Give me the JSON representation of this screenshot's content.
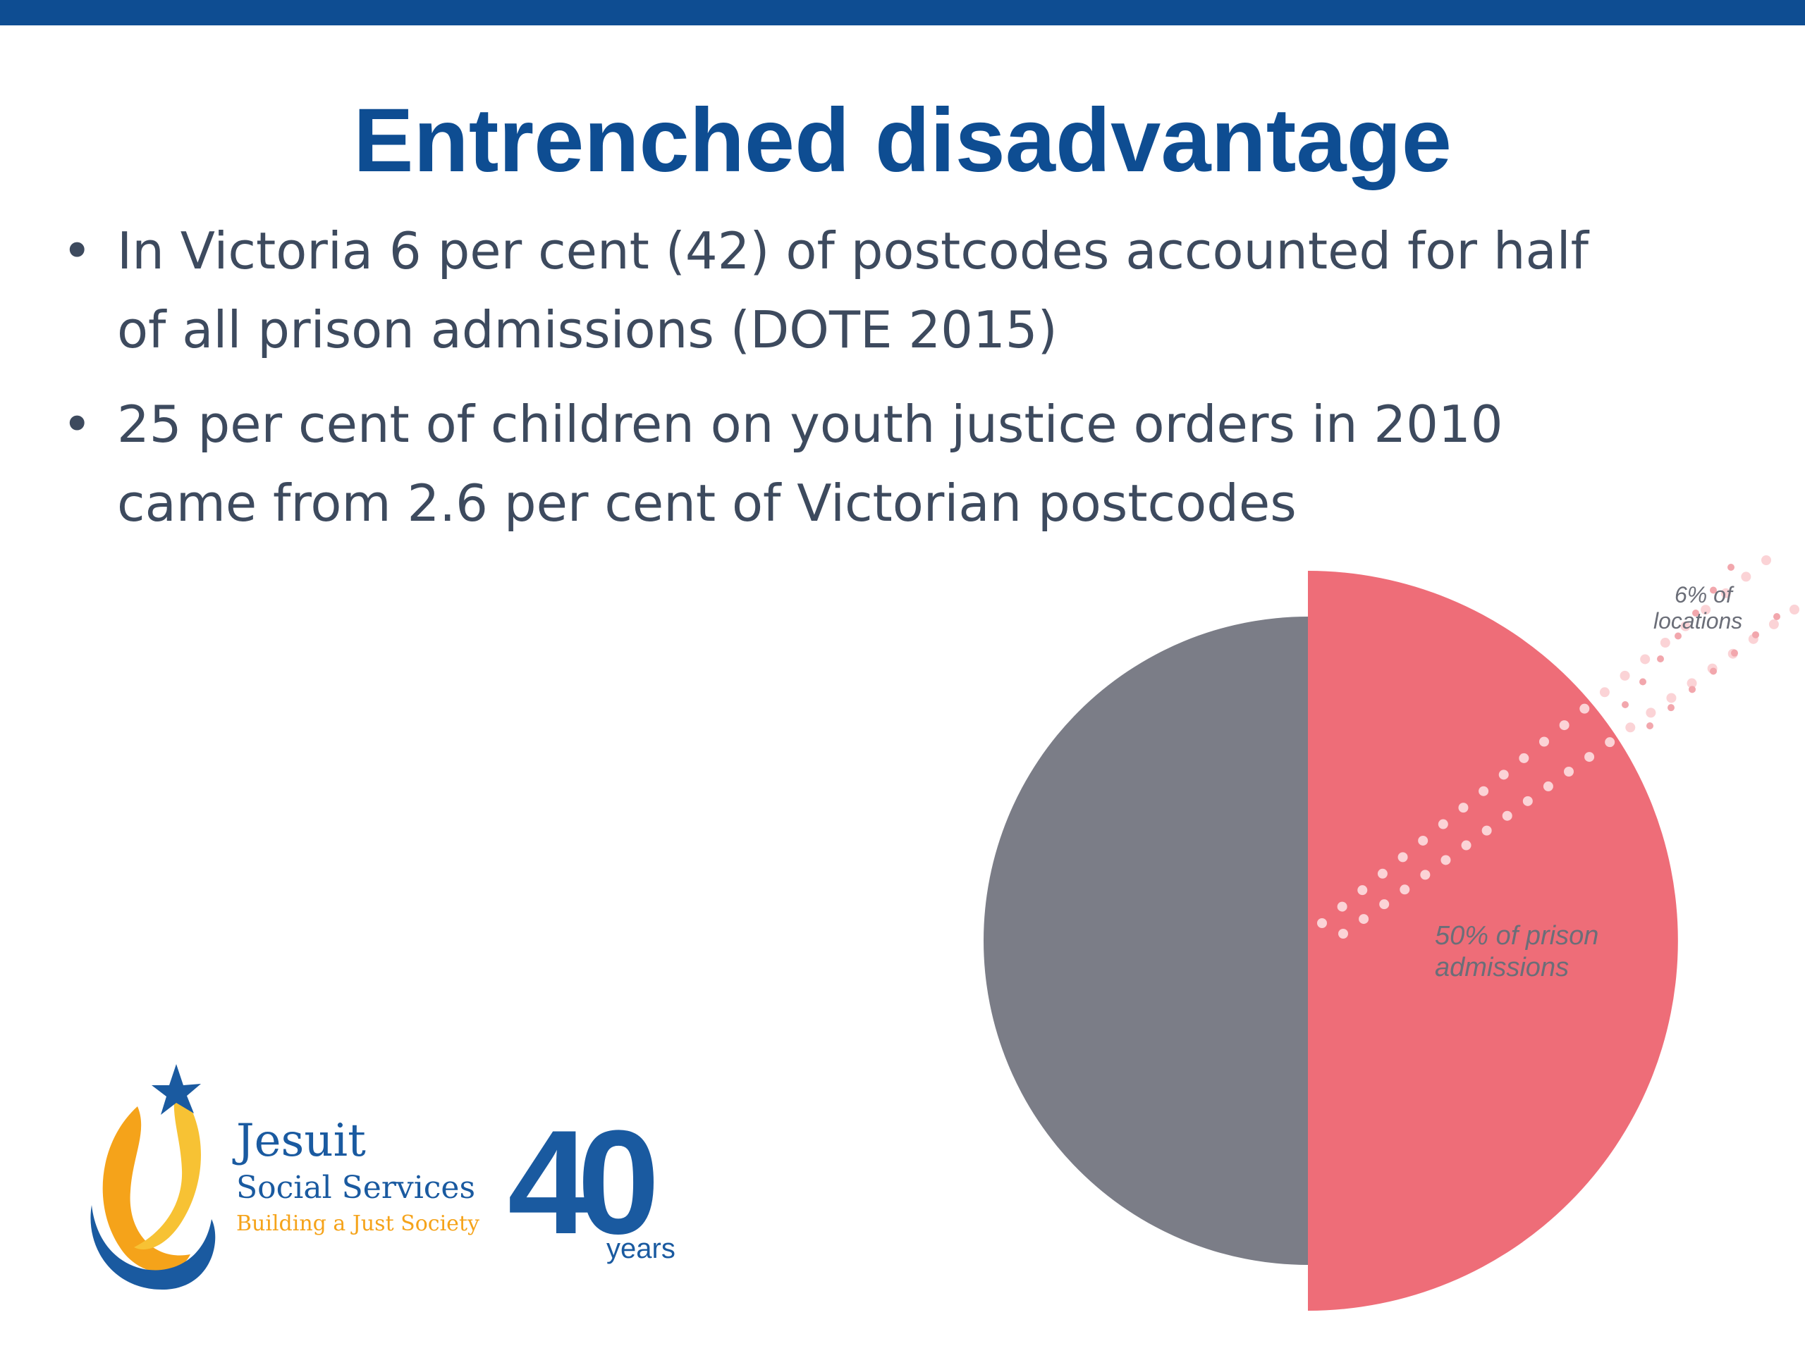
{
  "slide": {
    "title": "Entrenched disadvantage",
    "bullets": [
      "In Victoria 6 per cent (42) of postcodes accounted for half of all prison admissions (DOTE 2015)",
      "25 per cent of children on youth justice orders in 2010 came from 2.6 per cent of Victorian postcodes"
    ]
  },
  "chart_data": {
    "type": "pie",
    "slices": [
      {
        "label": "50% of prison admissions",
        "value": 50,
        "color": "#ee6d78"
      },
      {
        "label": "",
        "value": 50,
        "color": "#7b7d87"
      }
    ],
    "annotations": [
      "6% of locations",
      "50% of prison admissions"
    ]
  },
  "logo": {
    "org_line1": "Jesuit",
    "org_line2": "Social Services",
    "tagline": "Building a Just Society",
    "anniversary_number": "40",
    "anniversary_word": "years"
  },
  "colors": {
    "brand_blue": "#0e4d92",
    "body_text": "#3d4a5e",
    "pie_grey": "#7b7d87",
    "pie_red": "#ee6d78",
    "logo_orange": "#f5a31a"
  }
}
